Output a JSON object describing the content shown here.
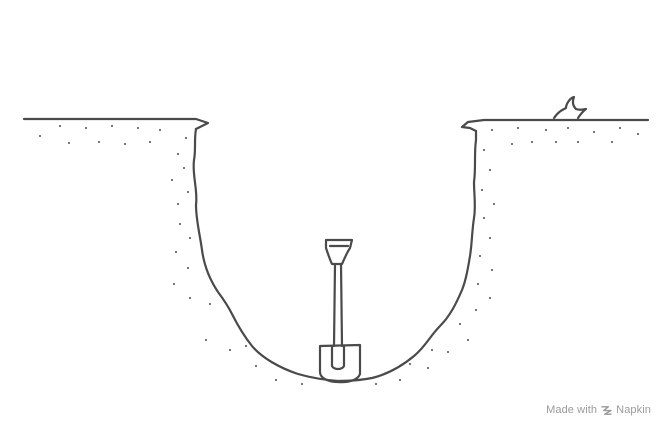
{
  "scene": {
    "subject": "hole dug in ground with shovel",
    "elements": [
      "ground-surface-left",
      "ground-surface-right",
      "hole-outline",
      "soil-dots",
      "grass-tuft",
      "shovel"
    ]
  },
  "colors": {
    "ink": "#4a4a4a",
    "dots": "#6a6a6a",
    "watermark": "#9a9a9a",
    "background": "#ffffff"
  },
  "watermark": {
    "made_with": "Made with",
    "brand": "Napkin",
    "icon": "napkin-logo-icon"
  }
}
